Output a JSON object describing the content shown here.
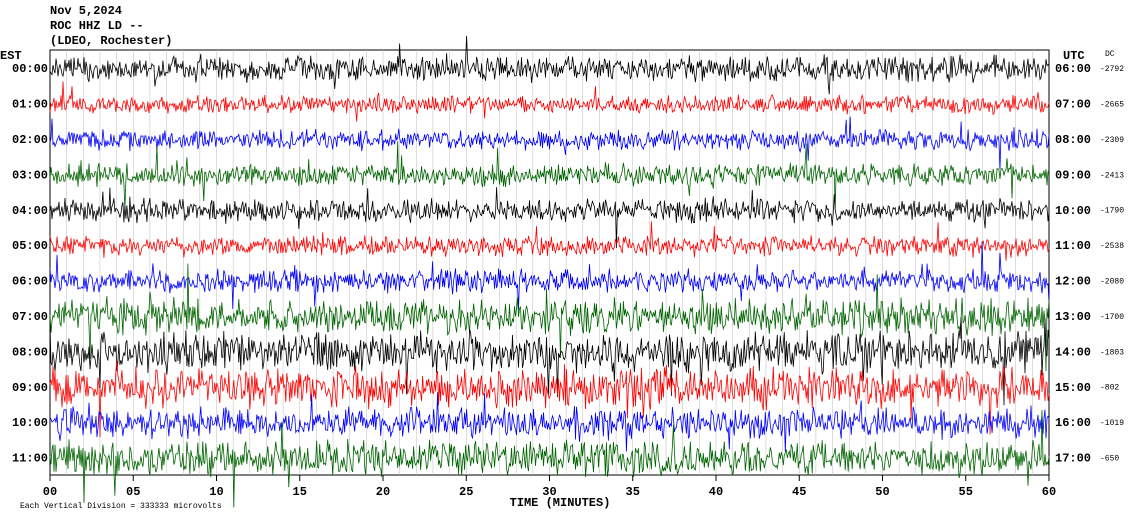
{
  "chart_data": {
    "type": "helicorder",
    "title": [
      "Nov 5,2024",
      "ROC HHZ LD --",
      "(LDEO, Rochester)"
    ],
    "left_axis_label": "EST",
    "categories": [
      "00:00",
      "01:00",
      "02:00",
      "03:00",
      "04:00",
      "05:00",
      "06:00",
      "07:00",
      "08:00",
      "09:00",
      "10:00",
      "11:00"
    ],
    "right_axis_label": "UTC",
    "right_labels": [
      "06:00",
      "07:00",
      "08:00",
      "09:00",
      "10:00",
      "11:00",
      "12:00",
      "13:00",
      "14:00",
      "15:00",
      "16:00",
      "17:00"
    ],
    "dc_label": "DC",
    "dc_values": [
      -2792,
      -2665,
      -2309,
      -2413,
      -1790,
      -2538,
      -2080,
      -1700,
      -1803,
      -802,
      -1019,
      -650
    ],
    "colors": [
      "#000000",
      "#ff0000",
      "#0000ff",
      "#006400"
    ],
    "xlim": [
      0,
      60
    ],
    "xticks": [
      {
        "value": 0,
        "label": "00"
      },
      {
        "value": 5,
        "label": "05"
      },
      10,
      15,
      20,
      25,
      30,
      35,
      40,
      45,
      50,
      55,
      60
    ],
    "xlabel": "TIME (MINUTES)",
    "footer": "Each Vertical Division = 333333 microvolts"
  }
}
